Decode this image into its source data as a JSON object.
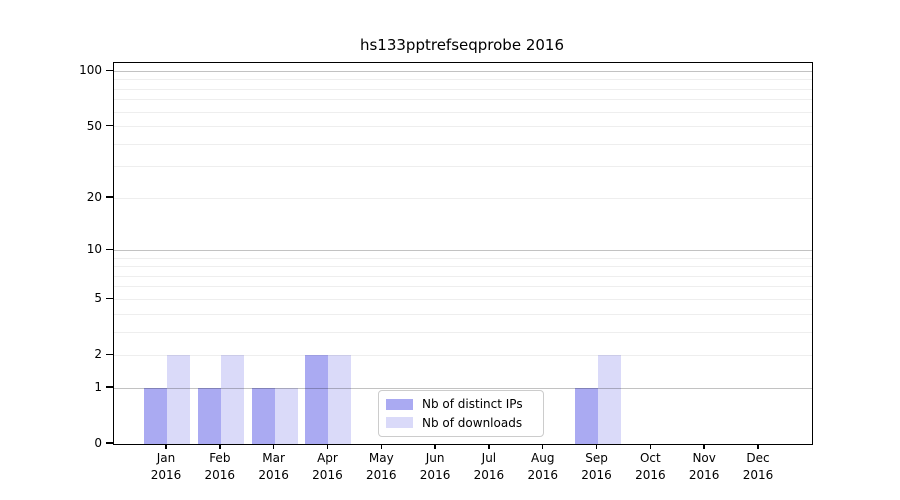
{
  "title": "hs133pptrefseqprobe 2016",
  "chart_data": {
    "type": "bar",
    "title": "hs133pptrefseqprobe 2016",
    "categories": [
      "Jan",
      "Feb",
      "Mar",
      "Apr",
      "May",
      "Jun",
      "Jul",
      "Aug",
      "Sep",
      "Oct",
      "Nov",
      "Dec"
    ],
    "category_year": "2016",
    "series": [
      {
        "name": "Nb of distinct IPs",
        "color": "#aaaaf2",
        "values": [
          1,
          1,
          1,
          2,
          0,
          0,
          0,
          0,
          1,
          0,
          0,
          0
        ]
      },
      {
        "name": "Nb of downloads",
        "color": "#dadaf9",
        "values": [
          2,
          2,
          1,
          2,
          0,
          0,
          0,
          0,
          2,
          0,
          0,
          0
        ]
      }
    ],
    "xlabel": "",
    "ylabel": "",
    "yscale": "log10(1+value)",
    "ylim": [
      0,
      111
    ],
    "y_tick_values": [
      0,
      1,
      2,
      5,
      10,
      20,
      50,
      100
    ],
    "y_major_gridline_values": [
      1,
      10,
      100
    ],
    "y_minor_gridline_values": [
      2,
      3,
      4,
      5,
      6,
      7,
      8,
      9,
      20,
      30,
      40,
      50,
      60,
      70,
      80,
      90
    ],
    "grid": "on",
    "legend_position": "lower-center-inside",
    "colors": {
      "major_gridline": "rgba(0,0,0,0.24)",
      "minor_gridline": "rgba(0,0,0,0.065)",
      "axis": "#000000",
      "background": "#ffffff"
    }
  },
  "legend": {
    "items": [
      {
        "label": "Nb of distinct IPs"
      },
      {
        "label": "Nb of downloads"
      }
    ]
  }
}
